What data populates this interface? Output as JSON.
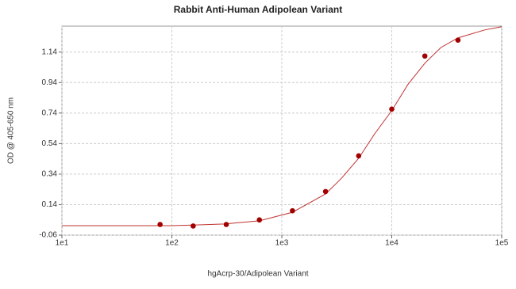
{
  "chart_data": {
    "type": "scatter",
    "title": "Rabbit Anti-Human Adipolean Variant",
    "x_label": "hgAcrp-30/Adipolean Variant",
    "y_label": "OD @ 405-650 nm",
    "x_scale": "log",
    "grid": true,
    "xlim": [
      10,
      100000
    ],
    "ylim": [
      -0.06,
      1.31
    ],
    "xticks": [
      {
        "value": 10,
        "label": "1e1"
      },
      {
        "value": 100,
        "label": "1e2"
      },
      {
        "value": 1000,
        "label": "1e3"
      },
      {
        "value": 10000,
        "label": "1e4"
      },
      {
        "value": 100000,
        "label": "1e5"
      }
    ],
    "yticks": [
      -0.06,
      0.14,
      0.34,
      0.54,
      0.74,
      0.94,
      1.14
    ],
    "series": [
      {
        "type": "scatter",
        "color": "#a00000",
        "x": [
          78.125,
          156.25,
          312.5,
          625,
          1250,
          2500,
          5000,
          10000,
          20000,
          40000
        ],
        "values": [
          0.01,
          0.0,
          0.01,
          0.04,
          0.1,
          0.226,
          0.46,
          0.766,
          1.114,
          1.218
        ]
      },
      {
        "type": "line",
        "color": "#c03030",
        "x": [
          10,
          100,
          300,
          625,
          1250,
          2500,
          3500,
          5000,
          7000,
          10000,
          14000,
          20000,
          28000,
          40000,
          70000,
          100000
        ],
        "values": [
          0.002,
          0.002,
          0.013,
          0.034,
          0.09,
          0.21,
          0.314,
          0.444,
          0.605,
          0.756,
          0.927,
          1.067,
          1.17,
          1.233,
          1.285,
          1.306
        ]
      }
    ]
  }
}
